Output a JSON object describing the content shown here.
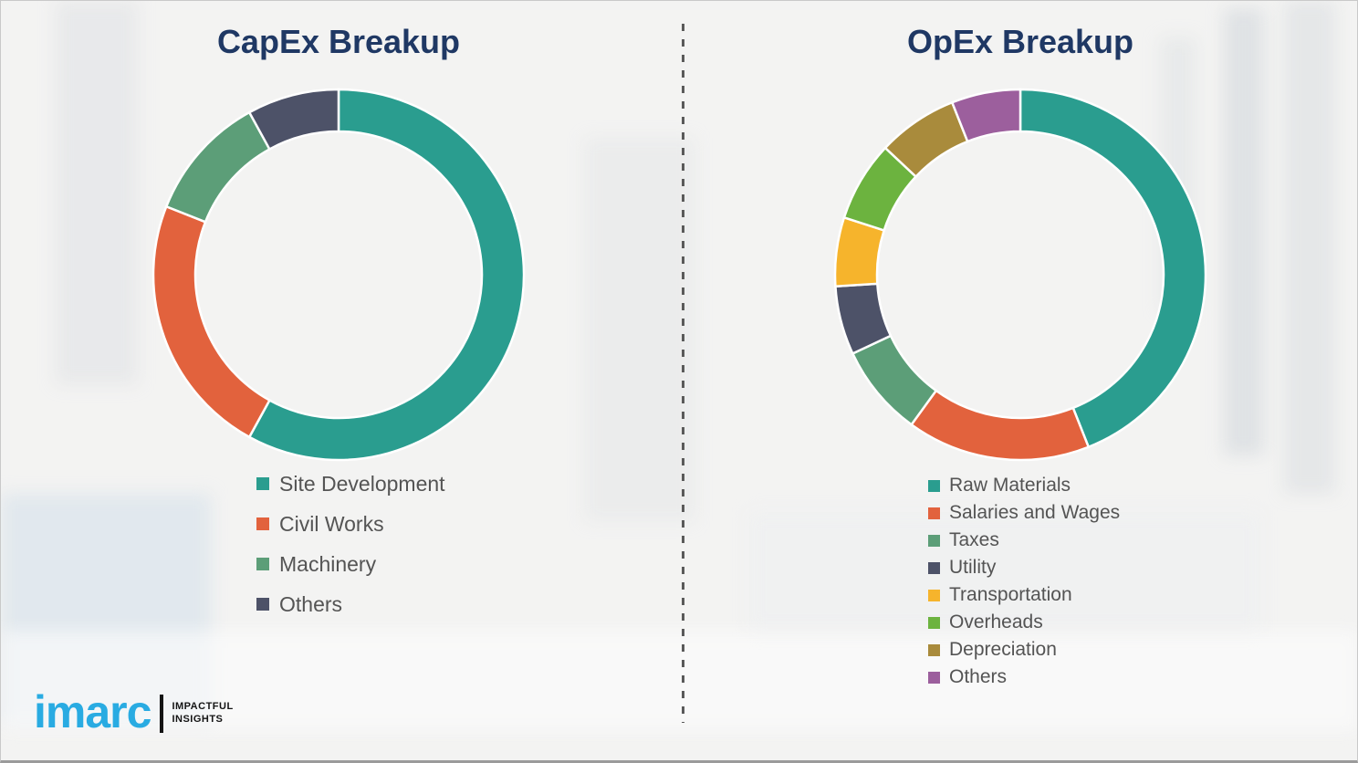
{
  "chart_data": [
    {
      "type": "pie",
      "variant": "donut",
      "title": "CapEx Breakup",
      "categories": [
        "Site Development",
        "Civil Works",
        "Machinery",
        "Others"
      ],
      "values": [
        58,
        23,
        11,
        8
      ],
      "colors": [
        "#2A9D8F",
        "#E2623D",
        "#5C9E78",
        "#4D5268"
      ],
      "start_angle_deg": 0,
      "direction": "clockwise",
      "legend_position": "below-left"
    },
    {
      "type": "pie",
      "variant": "donut",
      "title": "OpEx Breakup",
      "categories": [
        "Raw Materials",
        "Salaries and Wages",
        "Taxes",
        "Utility",
        "Transportation",
        "Overheads",
        "Depreciation",
        "Others"
      ],
      "values": [
        44,
        16,
        8,
        6,
        6,
        7,
        7,
        6
      ],
      "colors": [
        "#2A9D8F",
        "#E2623D",
        "#5C9E78",
        "#4D5268",
        "#F6B42C",
        "#6CB33F",
        "#A98B3C",
        "#9C5F9D"
      ],
      "start_angle_deg": 0,
      "direction": "clockwise",
      "legend_position": "below-left"
    }
  ],
  "titles_color": "#1F3864",
  "divider": {
    "style": "dashed",
    "color": "#5A5A5A"
  },
  "logo": {
    "wordmark": "imarc",
    "wordmark_color": "#29ABE2",
    "tagline_line1": "IMPACTFUL",
    "tagline_line2": "INSIGHTS"
  }
}
